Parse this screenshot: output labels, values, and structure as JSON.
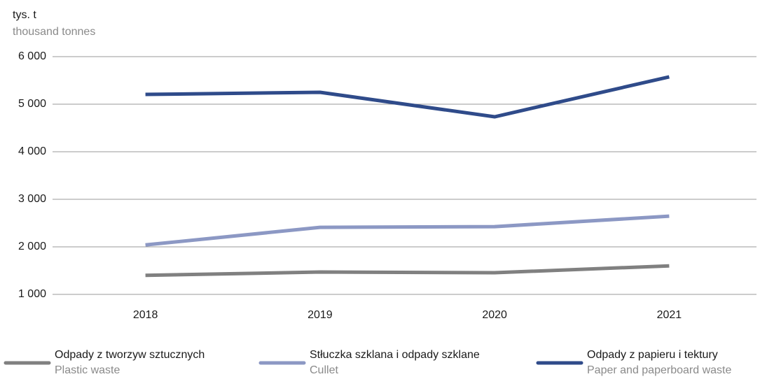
{
  "chart_data": {
    "type": "line",
    "y_label": "tys. t",
    "y_label_en": "thousand tonnes",
    "categories": [
      "2018",
      "2019",
      "2020",
      "2021"
    ],
    "series": [
      {
        "name": "Odpady z tworzyw sztucznych",
        "name_en": "Plastic waste",
        "color": "#808080",
        "values": [
          1400,
          1470,
          1455,
          1600
        ]
      },
      {
        "name": "Stłuczka szklana i odpady szklane",
        "name_en": "Cullet",
        "color": "#8c98c4",
        "values": [
          2040,
          2410,
          2425,
          2645
        ]
      },
      {
        "name": "Odpady z papieru i tektury",
        "name_en": "Paper and paperboard waste",
        "color": "#2f4b8a",
        "values": [
          5205,
          5250,
          4735,
          5575
        ]
      }
    ],
    "ylim": [
      1000,
      6000
    ],
    "yticks": [
      {
        "value": 1000,
        "label": "1 000"
      },
      {
        "value": 2000,
        "label": "2 000"
      },
      {
        "value": 3000,
        "label": "3 000"
      },
      {
        "value": 4000,
        "label": "4 000"
      },
      {
        "value": 5000,
        "label": "5 000"
      },
      {
        "value": 6000,
        "label": "6 000"
      }
    ],
    "grid": true,
    "legend": "bottom"
  }
}
